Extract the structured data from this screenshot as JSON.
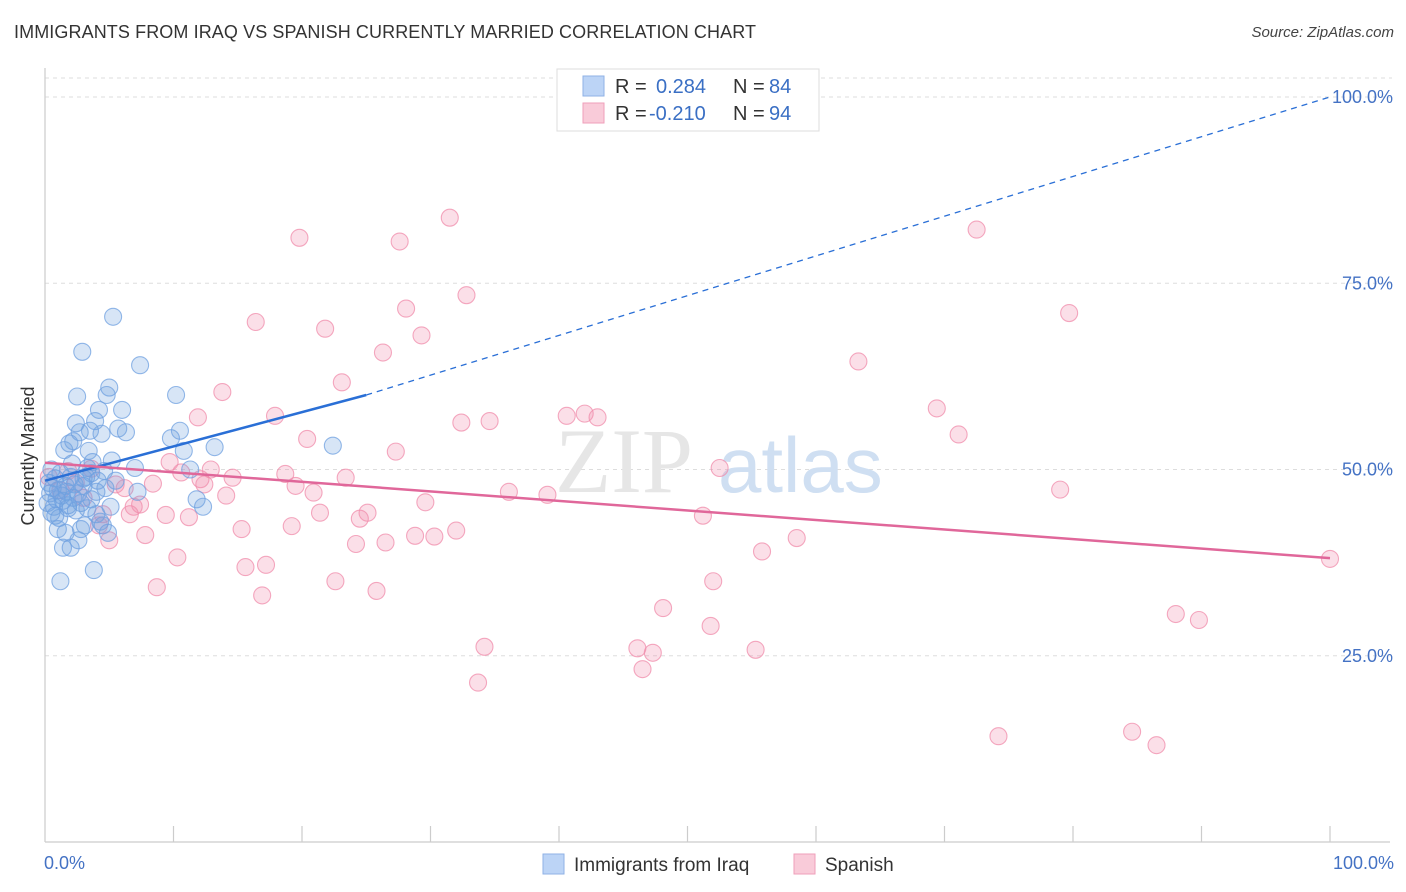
{
  "title": "IMMIGRANTS FROM IRAQ VS SPANISH CURRENTLY MARRIED CORRELATION CHART",
  "source": "Source: ZipAtlas.com",
  "chart_data": {
    "type": "scatter",
    "title": "IMMIGRANTS FROM IRAQ VS SPANISH CURRENTLY MARRIED CORRELATION CHART",
    "xlabel": "",
    "ylabel": "Currently Married",
    "xlim": [
      0,
      100
    ],
    "ylim": [
      0,
      105
    ],
    "x_tick_labels": [
      "0.0%",
      "100.0%"
    ],
    "y_ticks": [
      25,
      50,
      75,
      100
    ],
    "y_tick_labels": [
      "25.0%",
      "50.0%",
      "75.0%",
      "100.0%"
    ],
    "grid": true,
    "watermark": {
      "zip": "ZIP",
      "atlas": "atlas"
    },
    "legend_labels": {
      "r": "R =",
      "n": "N ="
    },
    "series": [
      {
        "name": "Immigrants from Iraq",
        "color": "#6fa0e0",
        "line_color": "#2a6fd6",
        "R": "0.284",
        "N": "84",
        "trend": {
          "x0": 0,
          "y0": 48.5,
          "x1": 25,
          "y1": 60.0,
          "dash_to_x": 100,
          "dash_to_y": 100.0
        },
        "points": [
          [
            0.2,
            45.5
          ],
          [
            0.4,
            46.8
          ],
          [
            0.5,
            44.2
          ],
          [
            0.6,
            47.5
          ],
          [
            0.7,
            45.0
          ],
          [
            0.8,
            48.8
          ],
          [
            0.9,
            46.0
          ],
          [
            1.0,
            47.2
          ],
          [
            1.1,
            43.5
          ],
          [
            1.2,
            49.5
          ],
          [
            1.3,
            46.5
          ],
          [
            1.4,
            45.8
          ],
          [
            1.5,
            52.6
          ],
          [
            1.6,
            41.5
          ],
          [
            1.7,
            47.0
          ],
          [
            1.8,
            44.8
          ],
          [
            1.9,
            53.5
          ],
          [
            2.0,
            39.5
          ],
          [
            2.1,
            50.8
          ],
          [
            2.2,
            46.2
          ],
          [
            2.3,
            48.0
          ],
          [
            2.4,
            56.2
          ],
          [
            2.5,
            59.8
          ],
          [
            2.6,
            40.5
          ],
          [
            2.7,
            55.0
          ],
          [
            2.8,
            45.5
          ],
          [
            2.9,
            65.8
          ],
          [
            3.0,
            47.8
          ],
          [
            3.1,
            42.5
          ],
          [
            3.2,
            49.0
          ],
          [
            3.3,
            44.8
          ],
          [
            3.4,
            52.5
          ],
          [
            3.5,
            55.2
          ],
          [
            3.6,
            46.0
          ],
          [
            3.7,
            51.0
          ],
          [
            3.8,
            36.5
          ],
          [
            3.9,
            56.5
          ],
          [
            4.0,
            44.0
          ],
          [
            4.1,
            48.5
          ],
          [
            4.2,
            58.0
          ],
          [
            4.3,
            43.0
          ],
          [
            4.4,
            54.8
          ],
          [
            4.5,
            42.5
          ],
          [
            4.6,
            49.8
          ],
          [
            4.7,
            47.5
          ],
          [
            4.8,
            60.0
          ],
          [
            4.9,
            41.5
          ],
          [
            5.0,
            61.0
          ],
          [
            5.1,
            45.0
          ],
          [
            5.2,
            51.2
          ],
          [
            5.3,
            70.5
          ],
          [
            5.5,
            48.5
          ],
          [
            5.7,
            55.5
          ],
          [
            6.0,
            58.0
          ],
          [
            6.3,
            55.0
          ],
          [
            7.0,
            50.2
          ],
          [
            7.2,
            47.0
          ],
          [
            7.4,
            64.0
          ],
          [
            9.8,
            54.2
          ],
          [
            10.2,
            60.0
          ],
          [
            10.5,
            55.2
          ],
          [
            10.8,
            52.5
          ],
          [
            11.3,
            50.0
          ],
          [
            11.8,
            46.0
          ],
          [
            12.3,
            45.0
          ],
          [
            13.2,
            53.0
          ],
          [
            22.4,
            53.2
          ],
          [
            0.3,
            48.2
          ],
          [
            0.5,
            50.0
          ],
          [
            0.8,
            43.8
          ],
          [
            1.0,
            42.0
          ],
          [
            1.2,
            35.0
          ],
          [
            1.4,
            39.5
          ],
          [
            1.6,
            47.8
          ],
          [
            1.8,
            45.2
          ],
          [
            2.0,
            49.0
          ],
          [
            2.2,
            53.8
          ],
          [
            2.4,
            44.5
          ],
          [
            2.6,
            46.8
          ],
          [
            2.8,
            42.0
          ],
          [
            3.0,
            48.8
          ],
          [
            3.3,
            50.2
          ],
          [
            3.6,
            49.5
          ],
          [
            4.0,
            47.0
          ]
        ]
      },
      {
        "name": "Spanish",
        "color": "#f08cab",
        "line_color": "#e0679a",
        "R": "-0.210",
        "N": "94",
        "trend": {
          "x0": 0,
          "y0": 50.9,
          "x1": 100,
          "y1": 38.1
        },
        "points": [
          [
            0.3,
            49.0
          ],
          [
            1.2,
            47.2
          ],
          [
            1.8,
            49.8
          ],
          [
            2.4,
            48.2
          ],
          [
            3.0,
            46.2
          ],
          [
            3.6,
            50.1
          ],
          [
            4.2,
            42.5
          ],
          [
            4.5,
            44.0
          ],
          [
            5.0,
            40.5
          ],
          [
            5.5,
            48.0
          ],
          [
            6.2,
            47.5
          ],
          [
            6.6,
            44.0
          ],
          [
            6.9,
            45.0
          ],
          [
            7.4,
            45.3
          ],
          [
            7.8,
            41.2
          ],
          [
            8.4,
            48.1
          ],
          [
            8.7,
            34.2
          ],
          [
            9.4,
            43.9
          ],
          [
            9.7,
            51.0
          ],
          [
            10.3,
            38.2
          ],
          [
            10.6,
            49.6
          ],
          [
            11.2,
            43.6
          ],
          [
            11.9,
            57.0
          ],
          [
            12.1,
            48.7
          ],
          [
            12.4,
            48.0
          ],
          [
            12.9,
            50.0
          ],
          [
            13.8,
            60.4
          ],
          [
            14.1,
            46.5
          ],
          [
            14.6,
            48.9
          ],
          [
            15.3,
            42.0
          ],
          [
            15.6,
            36.9
          ],
          [
            16.4,
            69.8
          ],
          [
            16.9,
            33.1
          ],
          [
            17.2,
            37.2
          ],
          [
            17.9,
            57.2
          ],
          [
            18.7,
            49.4
          ],
          [
            19.2,
            42.4
          ],
          [
            19.5,
            47.8
          ],
          [
            19.8,
            81.1
          ],
          [
            20.4,
            54.1
          ],
          [
            20.9,
            46.9
          ],
          [
            21.4,
            44.2
          ],
          [
            21.8,
            68.9
          ],
          [
            22.6,
            35.0
          ],
          [
            23.1,
            61.7
          ],
          [
            23.4,
            48.9
          ],
          [
            24.2,
            40.0
          ],
          [
            24.5,
            43.4
          ],
          [
            25.1,
            44.2
          ],
          [
            25.8,
            33.7
          ],
          [
            26.3,
            65.7
          ],
          [
            26.5,
            40.2
          ],
          [
            27.3,
            52.4
          ],
          [
            27.6,
            80.6
          ],
          [
            28.1,
            71.6
          ],
          [
            28.8,
            41.1
          ],
          [
            29.3,
            68.0
          ],
          [
            29.6,
            45.6
          ],
          [
            30.3,
            41.0
          ],
          [
            31.5,
            83.8
          ],
          [
            32.0,
            41.8
          ],
          [
            32.4,
            56.3
          ],
          [
            32.8,
            73.4
          ],
          [
            33.7,
            21.4
          ],
          [
            34.2,
            26.2
          ],
          [
            34.6,
            56.5
          ],
          [
            36.1,
            47.0
          ],
          [
            39.1,
            46.6
          ],
          [
            40.6,
            57.2
          ],
          [
            42.0,
            57.5
          ],
          [
            43.0,
            57.0
          ],
          [
            46.1,
            26.0
          ],
          [
            46.5,
            23.2
          ],
          [
            47.3,
            25.4
          ],
          [
            48.1,
            31.4
          ],
          [
            51.2,
            43.8
          ],
          [
            51.8,
            29.0
          ],
          [
            52.0,
            35.0
          ],
          [
            52.5,
            50.2
          ],
          [
            55.3,
            25.8
          ],
          [
            55.8,
            39.0
          ],
          [
            63.3,
            64.5
          ],
          [
            69.4,
            58.2
          ],
          [
            71.1,
            54.7
          ],
          [
            72.5,
            82.2
          ],
          [
            74.2,
            14.2
          ],
          [
            79.0,
            47.3
          ],
          [
            79.7,
            71.0
          ],
          [
            84.6,
            14.8
          ],
          [
            86.5,
            13.0
          ],
          [
            88.0,
            30.6
          ],
          [
            89.8,
            29.8
          ],
          [
            100.0,
            38.0
          ],
          [
            58.5,
            40.8
          ]
        ]
      }
    ]
  }
}
